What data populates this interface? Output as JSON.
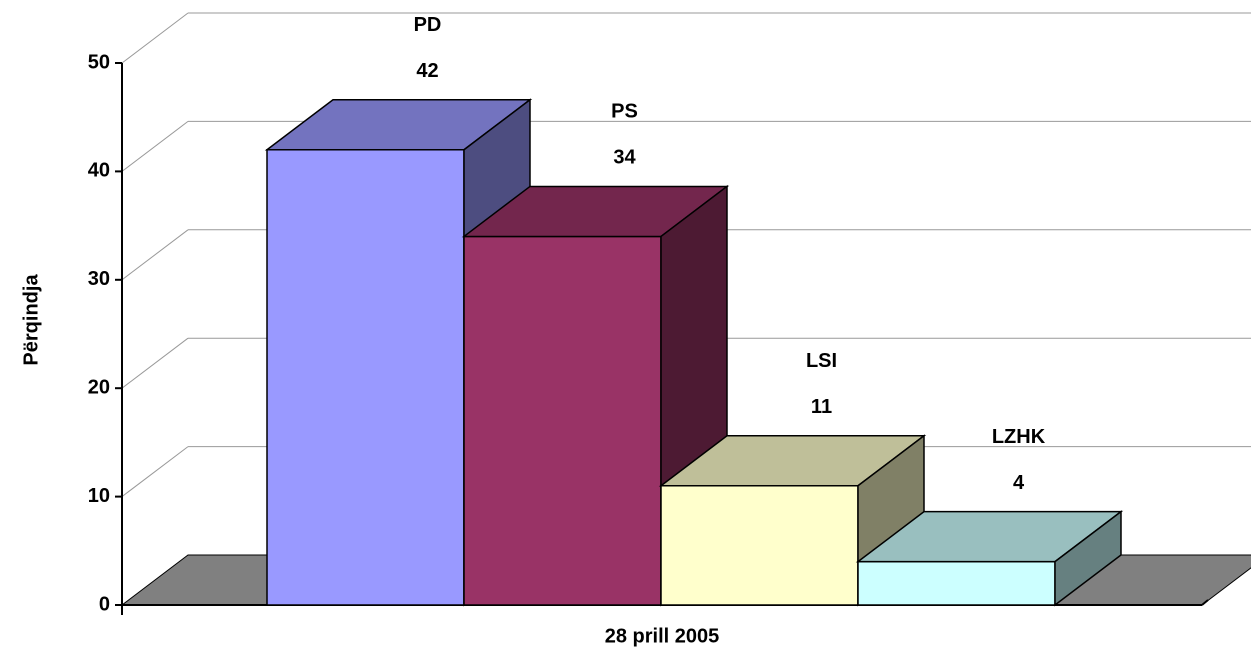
{
  "chart_data": {
    "type": "bar3d",
    "y_label": "Përqindja",
    "categories": [
      "28 prill 2005"
    ],
    "series": [
      {
        "name": "PD",
        "color": "#9999ff",
        "values": [
          42
        ]
      },
      {
        "name": "PS",
        "color": "#993366",
        "values": [
          34
        ]
      },
      {
        "name": "LSI",
        "color": "#ffffcc",
        "values": [
          11
        ]
      },
      {
        "name": "LZHK",
        "color": "#ccffff",
        "values": [
          4
        ]
      }
    ],
    "ylim": [
      0,
      50
    ],
    "yticks": [
      0,
      10,
      20,
      30,
      40,
      50
    ],
    "grid": true
  }
}
